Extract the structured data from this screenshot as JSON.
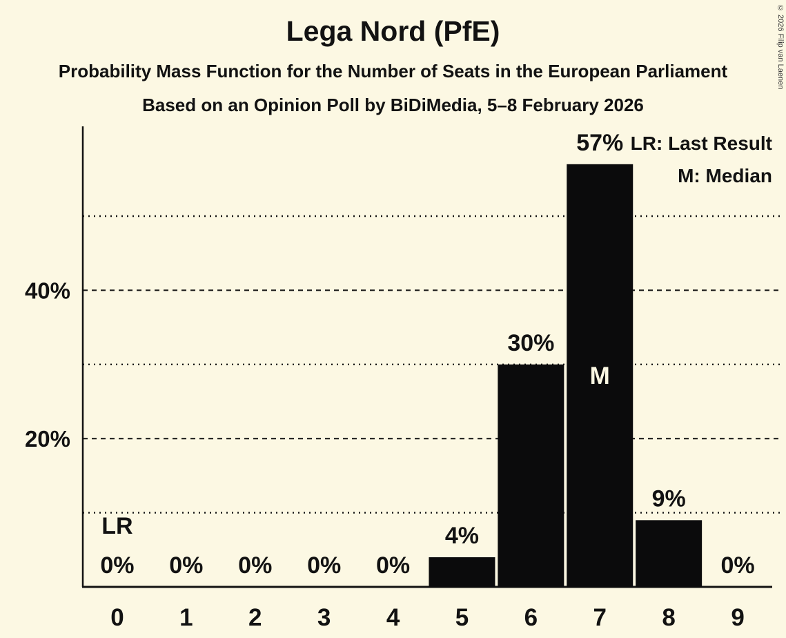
{
  "page": {
    "title": "Lega Nord (PfE)",
    "subtitle": "Probability Mass Function for the Number of Seats in the European Parliament",
    "poll_info": "Based on an Opinion Poll by BiDiMedia, 5–8 February 2026",
    "copyright": "© 2026 Filip van Laenen"
  },
  "legend": {
    "last_result": "LR: Last Result",
    "median": "M: Median"
  },
  "chart_data": {
    "type": "bar",
    "title": "Lega Nord (PfE)",
    "subtitle": "Probability Mass Function for the Number of Seats in the European Parliament",
    "source": "Based on an Opinion Poll by BiDiMedia, 5–8 February 2026",
    "xlabel": "",
    "ylabel": "",
    "categories": [
      "0",
      "1",
      "2",
      "3",
      "4",
      "5",
      "6",
      "7",
      "8",
      "9"
    ],
    "values": [
      0,
      0,
      0,
      0,
      0,
      4,
      30,
      57,
      9,
      0
    ],
    "value_labels": [
      "0%",
      "0%",
      "0%",
      "0%",
      "0%",
      "4%",
      "30%",
      "57%",
      "9%",
      "0%"
    ],
    "ylim": [
      0,
      62
    ],
    "y_axis": {
      "ticks": [
        {
          "value": 20,
          "label": "20%"
        },
        {
          "value": 40,
          "label": "40%"
        }
      ],
      "dashed_gridlines": [
        20,
        40
      ],
      "dotted_gridlines": [
        10,
        30,
        50
      ]
    },
    "annotations": [
      {
        "category": "0",
        "text": "LR",
        "meaning": "Last Result",
        "position": "above-label"
      },
      {
        "category": "7",
        "text": "M",
        "meaning": "Median",
        "position": "inside-bar"
      }
    ],
    "legend_position": "top-right",
    "grid": true,
    "colors": {
      "background": "#fcf8e3",
      "bar": "#0b0b0c",
      "ink": "#121212"
    }
  }
}
